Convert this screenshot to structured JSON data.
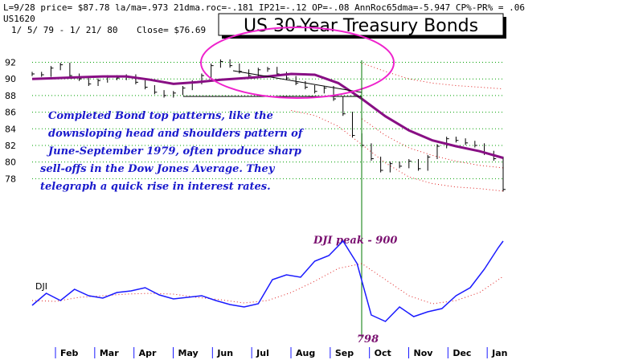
{
  "header": {
    "line1": "L=9/28  price= $87.78  la/ma=.973 21dma.roc=-.181 IP21=-.12 OP=-.08 AnnRoc65dma=-5.947 CP%-PR% =  .06",
    "symbol": "US1620",
    "range": "1/ 5/ 79  -  1/ 21/ 80",
    "close": "Close= $76.69"
  },
  "chart_data": {
    "type": "line",
    "title": "US 30-Year Treasury Bonds",
    "months": [
      "Feb",
      "Mar",
      "Apr",
      "May",
      "Jun",
      "Jul",
      "Aug",
      "Sep",
      "Oct",
      "Nov",
      "Dec",
      "Jan"
    ],
    "bond": {
      "y_ticks": [
        92,
        90,
        88,
        86,
        84,
        82,
        80,
        78
      ],
      "ylim": [
        76,
        93.5
      ],
      "x_range": [
        0,
        100
      ],
      "price_bars": {
        "x": [
          0,
          2,
          4,
          6,
          8,
          10,
          12,
          14,
          16,
          18,
          20,
          22,
          24,
          26,
          28,
          30,
          32,
          34,
          36,
          38,
          40,
          42,
          44,
          46,
          48,
          50,
          52,
          54,
          56,
          58,
          60,
          62,
          64,
          66,
          68,
          70,
          72,
          74,
          76,
          78,
          80,
          82,
          84,
          86,
          88,
          90,
          92,
          94,
          96,
          98,
          100
        ],
        "close": [
          90.6,
          90.5,
          91.3,
          91.7,
          90.4,
          90.0,
          89.4,
          89.8,
          90.2,
          90.1,
          90.3,
          89.6,
          89.0,
          88.4,
          88.0,
          88.3,
          88.9,
          89.6,
          90.4,
          91.6,
          92.1,
          91.6,
          90.9,
          90.4,
          91.1,
          91.2,
          90.6,
          90.1,
          89.5,
          89.0,
          88.5,
          88.9,
          87.6,
          85.8,
          83.2,
          82.0,
          80.4,
          79.0,
          79.8,
          79.5,
          80.1,
          79.2,
          80.6,
          81.9,
          82.8,
          82.6,
          82.3,
          82.0,
          81.1,
          80.4,
          76.7
        ]
      },
      "moving_average": {
        "x": [
          0,
          5,
          10,
          15,
          20,
          25,
          30,
          35,
          40,
          45,
          50,
          55,
          60,
          65,
          70,
          75,
          80,
          85,
          90,
          95,
          100
        ],
        "y": [
          90.0,
          90.1,
          90.2,
          90.3,
          90.3,
          89.9,
          89.4,
          89.6,
          89.9,
          90.1,
          90.3,
          90.6,
          90.5,
          89.5,
          87.6,
          85.5,
          83.8,
          82.6,
          81.9,
          81.3,
          80.5
        ]
      },
      "upper_band": {
        "x": [
          70,
          75,
          80,
          85,
          90,
          95,
          100
        ],
        "y": [
          91.9,
          90.9,
          90.0,
          89.5,
          89.2,
          89.0,
          88.8
        ]
      },
      "middle_band": {
        "x": [
          70,
          75,
          80,
          85,
          90,
          95,
          100
        ],
        "y": [
          85.2,
          83.2,
          81.7,
          80.8,
          80.1,
          79.6,
          79.3
        ]
      },
      "lower_band": {
        "x": [
          55,
          60,
          65,
          70,
          75,
          80,
          85,
          90,
          95,
          100
        ],
        "y": [
          86.2,
          85.6,
          84.3,
          82.1,
          79.9,
          78.2,
          77.4,
          77.0,
          76.8,
          76.5
        ]
      }
    },
    "dji": {
      "label": "DJI",
      "peak_label": "DJI peak - 900",
      "low_label": "798",
      "ylim": [
        790,
        910
      ],
      "line": {
        "x": [
          0,
          3,
          6,
          9,
          12,
          15,
          18,
          21,
          24,
          27,
          30,
          33,
          36,
          39,
          42,
          45,
          48,
          51,
          54,
          57,
          60,
          63,
          66,
          69,
          72,
          75,
          78,
          81,
          84,
          87,
          90,
          93,
          96,
          99,
          100
        ],
        "y": [
          820,
          835,
          826,
          840,
          832,
          829,
          836,
          838,
          842,
          833,
          828,
          830,
          832,
          826,
          821,
          818,
          822,
          852,
          858,
          855,
          875,
          882,
          900,
          872,
          808,
          800,
          818,
          806,
          812,
          816,
          832,
          842,
          865,
          892,
          900
        ]
      },
      "moving_average": {
        "x": [
          0,
          5,
          10,
          15,
          20,
          25,
          30,
          35,
          40,
          45,
          50,
          55,
          60,
          65,
          70,
          75,
          80,
          85,
          90,
          95,
          100
        ],
        "y": [
          826,
          825,
          830,
          832,
          834,
          835,
          834,
          830,
          827,
          823,
          826,
          836,
          850,
          866,
          872,
          852,
          832,
          822,
          826,
          836,
          856
        ]
      }
    },
    "annotations": [
      "Completed Bond top patterns, like the",
      "downsloping head and shoulders pattern of",
      "June-September 1979, often produce sharp",
      "sell-offs in the Dow Jones Average.  They",
      "telegraph a quick rise in interest rates."
    ],
    "colors": {
      "moving_average": "#880f84",
      "band": "#e02020",
      "dji_line": "#1a1aff",
      "annotation": "#1a1acc",
      "ellipse": "#ee22cc",
      "peak_marker": "#007700",
      "grid": "#00a000"
    }
  }
}
